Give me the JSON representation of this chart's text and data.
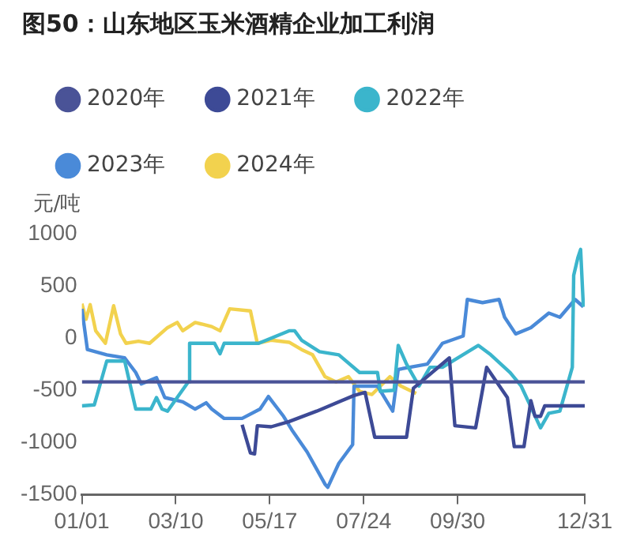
{
  "chart_data": {
    "type": "line",
    "title": "图50：山东地区玉米酒精企业加工利润",
    "ylabel": "元/吨",
    "xlim": [
      "--01-01",
      "--12-31"
    ],
    "xticks": [
      {
        "value": "--01-01",
        "label": "01/01"
      },
      {
        "value": "--03-10",
        "label": "03/10"
      },
      {
        "value": "--05-17",
        "label": "05/17"
      },
      {
        "value": "--07-24",
        "label": "07/24"
      },
      {
        "value": "--09-30",
        "label": "09/30"
      },
      {
        "value": "--12-31",
        "label": "12/31"
      }
    ],
    "ylim": [
      -1500,
      1000
    ],
    "yticks": [
      -1500,
      -1000,
      -500,
      0,
      500,
      1000
    ],
    "grid": false,
    "legend": "top",
    "marker": "none",
    "line_style": "solid",
    "series": [
      {
        "name": "2020年",
        "color": "#4a5397",
        "x": [
          "--01-01",
          "--12-31"
        ],
        "values": [
          -420,
          -420
        ]
      },
      {
        "name": "2021年",
        "color": "#3d4a96",
        "x": [
          "--04-27",
          "--05-03",
          "--05-06",
          "--05-08",
          "--05-18",
          "--05-31",
          "--06-20",
          "--07-17",
          "--07-25",
          "--08-01",
          "--08-24",
          "--08-29",
          "--09-24",
          "--09-28",
          "--10-13",
          "--10-21",
          "--11-05",
          "--11-10",
          "--11-17",
          "--11-22",
          "--11-25",
          "--11-29",
          "--12-02",
          "--12-31"
        ],
        "values": [
          -830,
          -1100,
          -1110,
          -840,
          -850,
          -800,
          -700,
          -550,
          -520,
          -950,
          -950,
          -480,
          -190,
          -840,
          -860,
          -280,
          -570,
          -1040,
          -1040,
          -600,
          -750,
          -750,
          -650,
          -650
        ]
      },
      {
        "name": "2022年",
        "color": "#3bb5cc",
        "x": [
          "--01-01",
          "--01-10",
          "--01-19",
          "--02-01",
          "--02-09",
          "--02-20",
          "--02-24",
          "--02-28",
          "--03-04",
          "--03-19",
          "--03-20",
          "--04-07",
          "--04-11",
          "--04-14",
          "--05-09",
          "--05-31",
          "--06-04",
          "--06-09",
          "--06-22",
          "--07-06",
          "--07-21",
          "--08-03",
          "--08-05",
          "--08-15",
          "--08-18",
          "--08-24",
          "--09-02",
          "--09-10",
          "--09-19",
          "--10-15",
          "--10-24",
          "--11-07",
          "--11-15",
          "--11-29",
          "--12-05",
          "--12-13",
          "--12-22",
          "--12-23",
          "--12-26",
          "--12-28",
          "--12-30"
        ],
        "values": [
          -650,
          -640,
          -220,
          -220,
          -680,
          -680,
          -570,
          -680,
          -700,
          -420,
          -50,
          -50,
          -150,
          -50,
          -50,
          70,
          70,
          -20,
          -130,
          -160,
          -330,
          -330,
          -510,
          -500,
          -70,
          -250,
          -460,
          -280,
          -280,
          -70,
          -160,
          -330,
          -460,
          -860,
          -720,
          -700,
          -280,
          600,
          770,
          850,
          300
        ]
      },
      {
        "name": "2023年",
        "color": "#4a8ad8",
        "x": [
          "--01-01",
          "--01-05",
          "--01-19",
          "--02-01",
          "--02-09",
          "--02-13",
          "--02-24",
          "--03-02",
          "--03-15",
          "--03-24",
          "--04-01",
          "--04-05",
          "--04-14",
          "--04-27",
          "--05-10",
          "--05-16",
          "--05-27",
          "--06-02",
          "--06-13",
          "--06-26",
          "--06-28",
          "--07-06",
          "--07-16",
          "--07-17",
          "--08-03",
          "--08-14",
          "--08-18",
          "--09-08",
          "--09-19",
          "--10-04",
          "--10-07",
          "--10-18",
          "--10-30",
          "--11-03",
          "--11-11",
          "--11-22",
          "--12-05",
          "--12-13",
          "--12-24",
          "--12-30"
        ],
        "values": [
          280,
          -110,
          -160,
          -190,
          -330,
          -440,
          -380,
          -570,
          -610,
          -680,
          -620,
          -680,
          -770,
          -770,
          -680,
          -560,
          -750,
          -880,
          -1090,
          -1400,
          -1430,
          -1200,
          -1020,
          -460,
          -460,
          -700,
          -300,
          -250,
          -50,
          20,
          370,
          340,
          370,
          200,
          40,
          100,
          240,
          200,
          370,
          300
        ]
      },
      {
        "name": "2024年",
        "color": "#f2d24e",
        "x": [
          "--01-01",
          "--01-04",
          "--01-07",
          "--01-11",
          "--01-18",
          "--01-24",
          "--01-29",
          "--02-02",
          "--02-11",
          "--02-19",
          "--03-04",
          "--03-11",
          "--03-15",
          "--03-24",
          "--04-05",
          "--04-11",
          "--04-18",
          "--05-03",
          "--05-08",
          "--05-18",
          "--05-31",
          "--06-09",
          "--06-17",
          "--06-26",
          "--07-04",
          "--07-13",
          "--07-21",
          "--07-30",
          "--08-12",
          "--08-20",
          "--08-31"
        ],
        "values": [
          330,
          180,
          320,
          70,
          -50,
          310,
          40,
          -50,
          -30,
          -50,
          100,
          150,
          70,
          150,
          110,
          70,
          280,
          260,
          -50,
          -20,
          -40,
          -110,
          -160,
          -370,
          -420,
          -370,
          -510,
          -540,
          -370,
          -460,
          -530
        ]
      }
    ]
  }
}
